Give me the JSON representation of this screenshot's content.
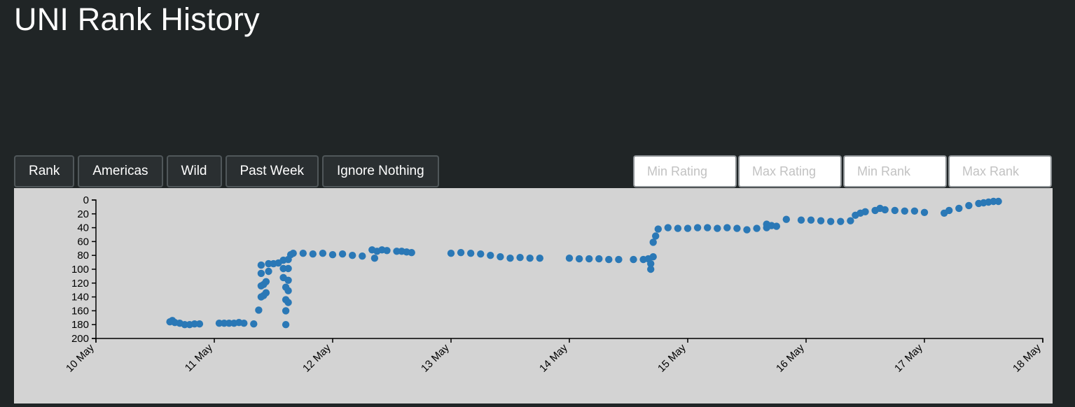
{
  "title": "UNI Rank History",
  "toolbar": {
    "buttons": [
      "Rank",
      "Americas",
      "Wild",
      "Past Week",
      "Ignore Nothing"
    ]
  },
  "filters": {
    "min_rating_placeholder": "Min Rating",
    "max_rating_placeholder": "Max Rating",
    "min_rank_placeholder": "Min Rank",
    "max_rank_placeholder": "Max Rank"
  },
  "colors": {
    "background": "#202526",
    "panel": "#d3d3d3",
    "points": "#2a78b6"
  },
  "chart_data": {
    "type": "scatter",
    "title": "",
    "xlabel": "",
    "ylabel": "",
    "grid": false,
    "y_inverted": true,
    "ylim": [
      0,
      200
    ],
    "yticks": [
      0,
      20,
      40,
      60,
      80,
      100,
      120,
      140,
      160,
      180,
      200
    ],
    "xlim": [
      "2024-05-10",
      "2024-05-18"
    ],
    "xticks": [
      "10 May",
      "11 May",
      "12 May",
      "13 May",
      "14 May",
      "15 May",
      "16 May",
      "17 May",
      "18 May"
    ],
    "points": [
      [
        "10 May 15:00",
        176
      ],
      [
        "10 May 15:30",
        174
      ],
      [
        "10 May 16:00",
        177
      ],
      [
        "10 May 17:00",
        178
      ],
      [
        "10 May 18:00",
        180
      ],
      [
        "10 May 19:00",
        180
      ],
      [
        "10 May 20:00",
        179
      ],
      [
        "10 May 21:00",
        179
      ],
      [
        "11 May 01:00",
        178
      ],
      [
        "11 May 02:00",
        178
      ],
      [
        "11 May 03:00",
        178
      ],
      [
        "11 May 04:00",
        178
      ],
      [
        "11 May 05:00",
        177
      ],
      [
        "11 May 06:00",
        178
      ],
      [
        "11 May 08:00",
        179
      ],
      [
        "11 May 09:00",
        159
      ],
      [
        "11 May 09:30",
        140
      ],
      [
        "11 May 09:30",
        124
      ],
      [
        "11 May 09:30",
        106
      ],
      [
        "11 May 09:30",
        94
      ],
      [
        "11 May 10:00",
        138
      ],
      [
        "11 May 10:00",
        122
      ],
      [
        "11 May 10:30",
        134
      ],
      [
        "11 May 10:30",
        118
      ],
      [
        "11 May 11:00",
        103
      ],
      [
        "11 May 11:00",
        92
      ],
      [
        "11 May 12:00",
        92
      ],
      [
        "11 May 13:00",
        91
      ],
      [
        "11 May 14:00",
        87
      ],
      [
        "11 May 14:00",
        99
      ],
      [
        "11 May 14:00",
        112
      ],
      [
        "11 May 14:30",
        126
      ],
      [
        "11 May 14:30",
        144
      ],
      [
        "11 May 14:30",
        160
      ],
      [
        "11 May 14:30",
        180
      ],
      [
        "11 May 15:00",
        116
      ],
      [
        "11 May 15:00",
        99
      ],
      [
        "11 May 15:00",
        86
      ],
      [
        "11 May 15:00",
        131
      ],
      [
        "11 May 15:00",
        148
      ],
      [
        "11 May 15:30",
        79
      ],
      [
        "11 May 16:00",
        77
      ],
      [
        "11 May 18:00",
        77
      ],
      [
        "11 May 20:00",
        78
      ],
      [
        "11 May 22:00",
        77
      ],
      [
        "12 May 00:00",
        79
      ],
      [
        "12 May 02:00",
        78
      ],
      [
        "12 May 04:00",
        80
      ],
      [
        "12 May 06:00",
        81
      ],
      [
        "12 May 08:00",
        72
      ],
      [
        "12 May 08:30",
        84
      ],
      [
        "12 May 09:00",
        74
      ],
      [
        "12 May 10:00",
        72
      ],
      [
        "12 May 11:00",
        73
      ],
      [
        "12 May 13:00",
        74
      ],
      [
        "12 May 14:00",
        74
      ],
      [
        "12 May 15:00",
        75
      ],
      [
        "12 May 16:00",
        76
      ],
      [
        "13 May 00:00",
        77
      ],
      [
        "13 May 02:00",
        76
      ],
      [
        "13 May 04:00",
        77
      ],
      [
        "13 May 06:00",
        78
      ],
      [
        "13 May 08:00",
        80
      ],
      [
        "13 May 10:00",
        82
      ],
      [
        "13 May 12:00",
        84
      ],
      [
        "13 May 14:00",
        83
      ],
      [
        "13 May 16:00",
        84
      ],
      [
        "13 May 18:00",
        84
      ],
      [
        "14 May 00:00",
        84
      ],
      [
        "14 May 02:00",
        85
      ],
      [
        "14 May 04:00",
        85
      ],
      [
        "14 May 06:00",
        85
      ],
      [
        "14 May 08:00",
        86
      ],
      [
        "14 May 10:00",
        86
      ],
      [
        "14 May 13:00",
        86
      ],
      [
        "14 May 15:00",
        86
      ],
      [
        "14 May 16:00",
        85
      ],
      [
        "14 May 16:30",
        100
      ],
      [
        "14 May 16:30",
        92
      ],
      [
        "14 May 17:00",
        82
      ],
      [
        "14 May 17:00",
        61
      ],
      [
        "14 May 17:30",
        52
      ],
      [
        "14 May 18:00",
        42
      ],
      [
        "14 May 20:00",
        40
      ],
      [
        "14 May 22:00",
        41
      ],
      [
        "15 May 00:00",
        41
      ],
      [
        "15 May 02:00",
        40
      ],
      [
        "15 May 04:00",
        40
      ],
      [
        "15 May 06:00",
        41
      ],
      [
        "15 May 08:00",
        40
      ],
      [
        "15 May 10:00",
        41
      ],
      [
        "15 May 12:00",
        43
      ],
      [
        "15 May 14:00",
        41
      ],
      [
        "15 May 16:00",
        40
      ],
      [
        "15 May 16:00",
        35
      ],
      [
        "15 May 17:00",
        37
      ],
      [
        "15 May 18:00",
        38
      ],
      [
        "15 May 20:00",
        28
      ],
      [
        "15 May 23:00",
        29
      ],
      [
        "16 May 01:00",
        29
      ],
      [
        "16 May 03:00",
        30
      ],
      [
        "16 May 05:00",
        31
      ],
      [
        "16 May 07:00",
        31
      ],
      [
        "16 May 09:00",
        30
      ],
      [
        "16 May 10:00",
        22
      ],
      [
        "16 May 11:00",
        19
      ],
      [
        "16 May 12:00",
        17
      ],
      [
        "16 May 14:00",
        15
      ],
      [
        "16 May 15:00",
        12
      ],
      [
        "16 May 16:00",
        14
      ],
      [
        "16 May 18:00",
        15
      ],
      [
        "16 May 20:00",
        16
      ],
      [
        "16 May 22:00",
        16
      ],
      [
        "17 May 00:00",
        18
      ],
      [
        "17 May 04:00",
        19
      ],
      [
        "17 May 05:00",
        15
      ],
      [
        "17 May 07:00",
        12
      ],
      [
        "17 May 09:00",
        8
      ],
      [
        "17 May 11:00",
        5
      ],
      [
        "17 May 12:00",
        4
      ],
      [
        "17 May 13:00",
        3
      ],
      [
        "17 May 14:00",
        2
      ],
      [
        "17 May 15:00",
        2
      ]
    ]
  }
}
